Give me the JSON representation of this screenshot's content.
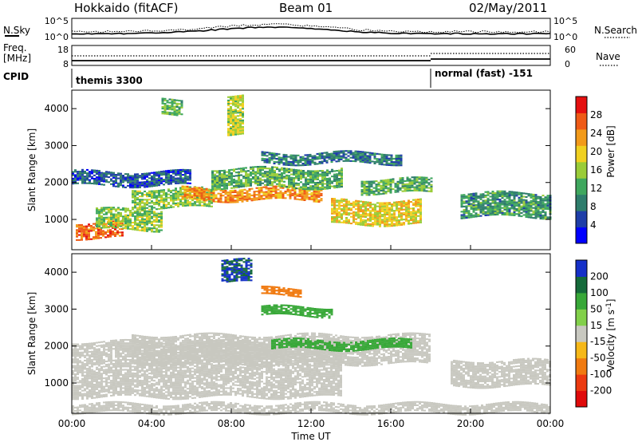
{
  "header": {
    "station": "Hokkaido (fitACF)",
    "beam": "Beam 01",
    "date": "02/May/2011"
  },
  "ops_panels": {
    "nsky_label": "N.Sky",
    "nsky_ticks_left": [
      "10^5",
      "10^0"
    ],
    "nsky_ticks_right": [
      "10^5",
      "10^0"
    ],
    "nsearch_label": "N.Search",
    "freq_label_line1": "Freq.",
    "freq_label_line2": "[MHz]",
    "freq_ticks_left": [
      "18",
      "8"
    ],
    "nave_ticks_right": [
      "60",
      "0"
    ],
    "nave_label": "Nave",
    "cpid_label": "CPID",
    "cpid_modes": [
      {
        "name": "themis 3300",
        "start_hour": 0
      },
      {
        "name": "normal (fast) -151",
        "start_hour": 18
      }
    ]
  },
  "chart_data": [
    {
      "type": "heatmap",
      "panel": "power",
      "ylabel": "Slant Range [km]",
      "xlabel": "",
      "ylim": [
        180,
        4500
      ],
      "yticks": [
        "1000",
        "2000",
        "3000",
        "4000"
      ],
      "xlim_hours": [
        0,
        24
      ],
      "colorbar": {
        "label": "Power [dB]",
        "ticks": [
          "28",
          "24",
          "20",
          "16",
          "12",
          "8",
          "4"
        ],
        "colors": [
          "#0000ff",
          "#1e3ea8",
          "#2e7d6c",
          "#3fa75e",
          "#9acc38",
          "#f0d020",
          "#f29a1a",
          "#ef5a16",
          "#e51010"
        ]
      },
      "bands": [
        {
          "t0": 0.2,
          "t1": 2.6,
          "r0": 480,
          "r1": 900,
          "level": 26
        },
        {
          "t0": 1.2,
          "t1": 4.5,
          "r0": 700,
          "r1": 1250,
          "level": 16
        },
        {
          "t0": 3.0,
          "t1": 7.0,
          "r0": 1300,
          "r1": 1800,
          "level": 16
        },
        {
          "t0": 5.5,
          "t1": 12.5,
          "r0": 1500,
          "r1": 1850,
          "level": 24
        },
        {
          "t0": 7.0,
          "t1": 13.5,
          "r0": 1850,
          "r1": 2350,
          "level": 14
        },
        {
          "t0": 9.5,
          "t1": 16.5,
          "r0": 2500,
          "r1": 2800,
          "level": 10
        },
        {
          "t0": 13.0,
          "t1": 17.5,
          "r0": 850,
          "r1": 1500,
          "level": 20
        },
        {
          "t0": 14.5,
          "t1": 18.0,
          "r0": 1700,
          "r1": 2100,
          "level": 14
        },
        {
          "t0": 19.5,
          "t1": 24.0,
          "r0": 1050,
          "r1": 1700,
          "level": 12
        },
        {
          "t0": 0.0,
          "t1": 6.0,
          "r0": 1900,
          "r1": 2300,
          "level": 8
        },
        {
          "t0": 7.8,
          "t1": 8.6,
          "r0": 3300,
          "r1": 4350,
          "level": 18
        },
        {
          "t0": 4.5,
          "t1": 5.5,
          "r0": 3800,
          "r1": 4250,
          "level": 14
        }
      ]
    },
    {
      "type": "heatmap",
      "panel": "velocity",
      "ylabel": "Slant Range [km]",
      "xlabel": "Time UT",
      "ylim": [
        180,
        4500
      ],
      "yticks": [
        "1000",
        "2000",
        "3000",
        "4000"
      ],
      "xlim_hours": [
        0,
        24
      ],
      "xticks": [
        "00:00",
        "04:00",
        "08:00",
        "12:00",
        "16:00",
        "20:00",
        "00:00"
      ],
      "colorbar": {
        "label": "Velocity [m s^-1]",
        "ticks": [
          "200",
          "100",
          "50",
          "15",
          "-15",
          "-50",
          "-100",
          "-200"
        ],
        "colors": [
          "#1530c8",
          "#156a3a",
          "#38a838",
          "#82d04a",
          "#c8c8c0",
          "#f6b818",
          "#f07a10",
          "#ec3a10",
          "#e00a0a"
        ]
      },
      "bands": [
        {
          "t0": 0.0,
          "t1": 13.5,
          "r0": 600,
          "r1": 2100,
          "level": 0
        },
        {
          "t0": 3.0,
          "t1": 18.0,
          "r0": 1500,
          "r1": 2300,
          "level": 0
        },
        {
          "t0": 10.0,
          "t1": 17.0,
          "r0": 1900,
          "r1": 2150,
          "level": 70
        },
        {
          "t0": 9.5,
          "t1": 13.0,
          "r0": 2800,
          "r1": 3050,
          "level": 60
        },
        {
          "t0": 9.5,
          "t1": 11.5,
          "r0": 3350,
          "r1": 3550,
          "level": -60
        },
        {
          "t0": 7.5,
          "t1": 9.0,
          "r0": 3700,
          "r1": 4300,
          "level": 150
        },
        {
          "t0": 19.0,
          "t1": 24.0,
          "r0": 900,
          "r1": 1600,
          "level": 0
        },
        {
          "t0": 0.0,
          "t1": 24.0,
          "r0": 180,
          "r1": 450,
          "level": 0
        }
      ]
    }
  ],
  "time_axis_label": "Time UT",
  "xticks": [
    "00:00",
    "04:00",
    "08:00",
    "12:00",
    "16:00",
    "20:00",
    "00:00"
  ]
}
